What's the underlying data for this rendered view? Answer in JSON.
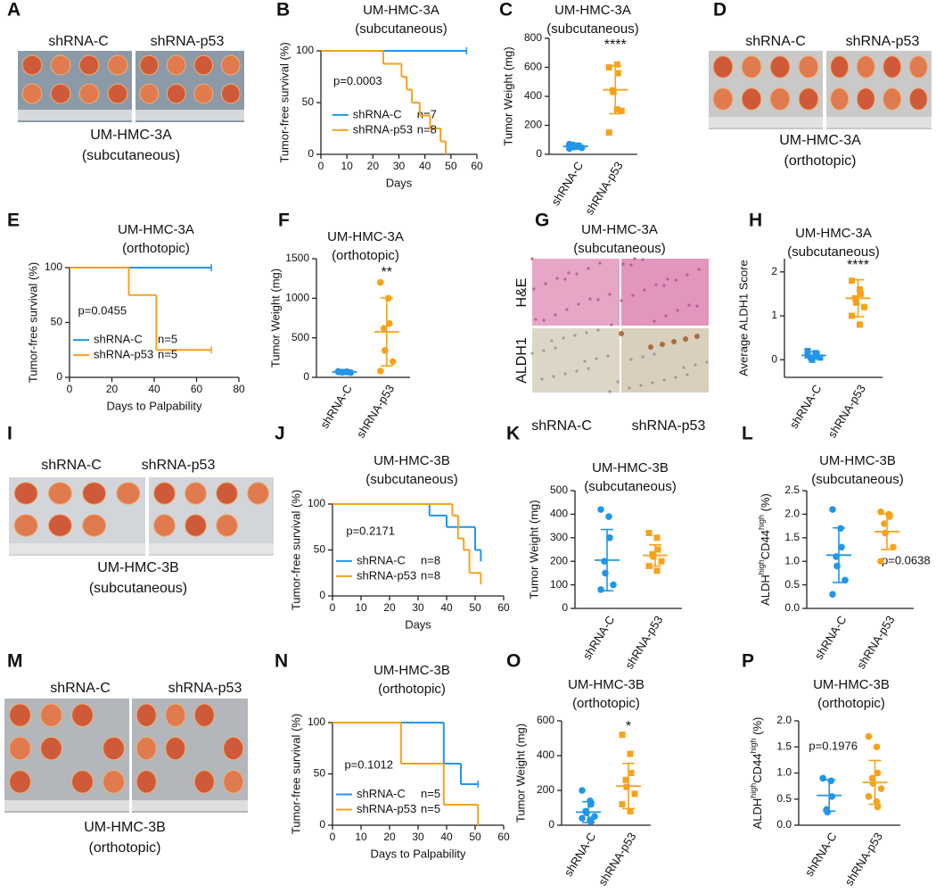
{
  "chart_data": [
    {
      "panel": "B",
      "type": "survival",
      "title": "UM-HMC-3A",
      "subtitle": "(subcutaneous)",
      "xlabel": "Days",
      "ylabel": "Tumor-free survival (%)",
      "xlim": [
        0,
        60
      ],
      "xticks": [
        0,
        10,
        20,
        30,
        40,
        50,
        60
      ],
      "ylim": [
        0,
        100
      ],
      "yticks": [
        0,
        50,
        100
      ],
      "annotation": "p=0.0003",
      "series": [
        {
          "name": "shRNA-C",
          "n_label": "n=7",
          "color": "#2196e8",
          "x": [
            0,
            56
          ],
          "values": [
            100,
            100
          ]
        },
        {
          "name": "shRNA-p53",
          "n_label": "n=8",
          "color": "#f7a21b",
          "x": [
            0,
            24,
            31,
            33,
            35,
            38,
            42,
            46,
            48
          ],
          "values": [
            100,
            87.5,
            75,
            62.5,
            50,
            37.5,
            25,
            12.5,
            0
          ]
        }
      ]
    },
    {
      "panel": "C",
      "type": "dot",
      "title": "UM-HMC-3A",
      "subtitle": "(subcutaneous)",
      "ylabel": "Tumor Weight (mg)",
      "ylim": [
        0,
        800
      ],
      "yticks": [
        0,
        200,
        400,
        600,
        800
      ],
      "annotation": "****",
      "series": [
        {
          "name": "shRNA-C",
          "color": "#2196e8",
          "marker": "circle",
          "values": [
            40,
            55,
            60,
            65,
            50,
            45,
            70
          ],
          "mean": 55,
          "sd": 20
        },
        {
          "name": "shRNA-p53",
          "color": "#f7a21b",
          "marker": "square",
          "values": [
            600,
            620,
            560,
            440,
            430,
            300,
            150,
            310
          ],
          "mean": 445,
          "sd": 165
        }
      ]
    },
    {
      "panel": "E",
      "type": "survival",
      "title": "UM-HMC-3A",
      "subtitle": "(orthotopic)",
      "xlabel": "Days to Palpability",
      "ylabel": "Tumor-free survival (%)",
      "xlim": [
        0,
        80
      ],
      "xticks": [
        0,
        20,
        40,
        60,
        80
      ],
      "ylim": [
        0,
        100
      ],
      "yticks": [
        0,
        50,
        100
      ],
      "annotation": "p=0.0455",
      "series": [
        {
          "name": "shRNA-C",
          "n_label": "n=5",
          "color": "#2196e8",
          "x": [
            0,
            67
          ],
          "values": [
            100,
            100
          ]
        },
        {
          "name": "shRNA-p53",
          "n_label": "n=5",
          "color": "#f7a21b",
          "x": [
            0,
            28,
            41,
            67
          ],
          "values": [
            100,
            75,
            25,
            25
          ]
        }
      ]
    },
    {
      "panel": "F",
      "type": "dot",
      "title": "UM-HMC-3A",
      "subtitle": "(orthotopic)",
      "ylabel": "Tumor Weight (mg)",
      "ylim": [
        0,
        1500
      ],
      "yticks": [
        0,
        500,
        1000,
        1500
      ],
      "annotation": "**",
      "series": [
        {
          "name": "shRNA-C",
          "color": "#2196e8",
          "marker": "circle",
          "values": [
            70,
            70,
            70,
            65,
            65,
            60,
            75
          ],
          "mean": 68,
          "sd": 5
        },
        {
          "name": "shRNA-p53",
          "color": "#f7a21b",
          "marker": "circle",
          "values": [
            1200,
            1000,
            680,
            620,
            340,
            200,
            80
          ],
          "mean": 575,
          "sd": 430
        }
      ]
    },
    {
      "panel": "H",
      "type": "dot",
      "title": "UM-HMC-3A",
      "subtitle": "(subcutaneous)",
      "ylabel": "Average ALDH1 Score",
      "ylim": [
        -0.4,
        2.3
      ],
      "yticks": [
        0,
        1,
        2
      ],
      "annotation": "****",
      "series": [
        {
          "name": "shRNA-C",
          "color": "#2196e8",
          "marker": "square",
          "values": [
            0.2,
            0.15,
            0.1,
            0.05,
            0,
            0.05,
            0.1,
            0.15
          ],
          "mean": 0.1,
          "sd": 0.08
        },
        {
          "name": "shRNA-p53",
          "color": "#f7a21b",
          "marker": "square",
          "values": [
            1.8,
            1.6,
            1.5,
            1.4,
            1.3,
            1.2,
            1.0,
            0.8
          ],
          "mean": 1.4,
          "sd": 0.42
        }
      ]
    },
    {
      "panel": "J",
      "type": "survival",
      "title": "UM-HMC-3B",
      "subtitle": "(subcutaneous)",
      "xlabel": "Days",
      "ylabel": "Tumor-free survival (%)",
      "xlim": [
        0,
        60
      ],
      "xticks": [
        0,
        10,
        20,
        30,
        40,
        50,
        60
      ],
      "ylim": [
        0,
        100
      ],
      "yticks": [
        0,
        50,
        100
      ],
      "annotation": "p=0.2171",
      "series": [
        {
          "name": "shRNA-C",
          "n_label": "n=8",
          "color": "#2196e8",
          "x": [
            0,
            34,
            40,
            50,
            52
          ],
          "values": [
            100,
            87.5,
            75,
            50,
            37.5
          ]
        },
        {
          "name": "shRNA-p53",
          "n_label": "n=8",
          "color": "#f7a21b",
          "x": [
            0,
            42,
            44,
            46,
            48,
            52
          ],
          "values": [
            100,
            87.5,
            62.5,
            50,
            25,
            12.5
          ]
        }
      ]
    },
    {
      "panel": "K",
      "type": "dot",
      "title": "UM-HMC-3B",
      "subtitle": "(subcutaneous)",
      "ylabel": "Tumor Weight (mg)",
      "ylim": [
        0,
        500
      ],
      "yticks": [
        0,
        100,
        200,
        300,
        400,
        500
      ],
      "series": [
        {
          "name": "shRNA-C",
          "color": "#2196e8",
          "marker": "circle",
          "values": [
            420,
            390,
            300,
            200,
            150,
            100,
            80
          ],
          "mean": 205,
          "sd": 130
        },
        {
          "name": "shRNA-p53",
          "color": "#f7a21b",
          "marker": "square",
          "values": [
            320,
            300,
            250,
            230,
            220,
            200,
            180,
            160
          ],
          "mean": 225,
          "sd": 45
        }
      ]
    },
    {
      "panel": "L",
      "type": "dot",
      "title": "UM-HMC-3B",
      "subtitle": "(subcutaneous)",
      "ylabel": [
        {
          "text": "ALDH"
        },
        {
          "text": "high",
          "sup": true
        },
        {
          "text": "CD44"
        },
        {
          "text": "high",
          "sup": true
        },
        {
          "text": " (%)"
        }
      ],
      "ylim": [
        0,
        2.5
      ],
      "yticks": [
        {
          "value": 0,
          "label": "0.0"
        },
        0.5,
        {
          "value": 1,
          "label": "1.0"
        },
        1.5,
        {
          "value": 2,
          "label": "2.0"
        },
        2.5
      ],
      "annotation": "p=0.0638",
      "series": [
        {
          "name": "shRNA-C",
          "color": "#2196e8",
          "marker": "circle",
          "values": [
            2.1,
            1.7,
            1.3,
            1.1,
            0.9,
            0.6,
            0.3
          ],
          "mean": 1.13,
          "sd": 0.58
        },
        {
          "name": "shRNA-p53",
          "color": "#f7a21b",
          "marker": "circle",
          "values": [
            2.05,
            2.0,
            1.95,
            1.8,
            1.6,
            1.3,
            1.0
          ],
          "mean": 1.63,
          "sd": 0.38
        }
      ]
    },
    {
      "panel": "N",
      "type": "survival",
      "title": "UM-HMC-3B",
      "subtitle": "(orthotopic)",
      "xlabel": "Days to Palpability",
      "ylabel": "Tumor-free survival (%)",
      "xlim": [
        0,
        60
      ],
      "xticks": [
        0,
        10,
        20,
        30,
        40,
        50,
        60
      ],
      "ylim": [
        0,
        100
      ],
      "yticks": [
        0,
        50,
        100
      ],
      "annotation": "p=0.1012",
      "series": [
        {
          "name": "shRNA-C",
          "n_label": "n=5",
          "color": "#2196e8",
          "x": [
            0,
            39,
            45,
            51
          ],
          "values": [
            100,
            60,
            40,
            40
          ]
        },
        {
          "name": "shRNA-p53",
          "n_label": "n=5",
          "color": "#f7a21b",
          "x": [
            0,
            24,
            39,
            51
          ],
          "values": [
            100,
            60,
            20,
            0
          ]
        }
      ]
    },
    {
      "panel": "O",
      "type": "dot",
      "title": "UM-HMC-3B",
      "subtitle": "(orthotopic)",
      "ylabel": "Tumor Weight (mg)",
      "ylim": [
        0,
        600
      ],
      "yticks": [
        0,
        200,
        400,
        600
      ],
      "annotation": "*",
      "series": [
        {
          "name": "shRNA-C",
          "color": "#2196e8",
          "marker": "circle",
          "values": [
            200,
            140,
            120,
            80,
            70,
            50,
            40,
            30,
            20
          ],
          "mean": 75,
          "sd": 60
        },
        {
          "name": "shRNA-p53",
          "color": "#f7a21b",
          "marker": "square",
          "values": [
            520,
            410,
            300,
            260,
            220,
            180,
            120,
            80
          ],
          "mean": 225,
          "sd": 130
        }
      ]
    },
    {
      "panel": "P",
      "type": "dot",
      "title": "UM-HMC-3B",
      "subtitle": "(orthotopic)",
      "ylabel": [
        {
          "text": "ALDH"
        },
        {
          "text": "high",
          "sup": true
        },
        {
          "text": "CD44"
        },
        {
          "text": "high",
          "sup": true
        },
        {
          "text": " (%)"
        }
      ],
      "ylim": [
        0,
        2.0
      ],
      "yticks": [
        {
          "value": 0,
          "label": "0.0"
        },
        0.5,
        {
          "value": 1,
          "label": "1.0"
        },
        1.5,
        {
          "value": 2,
          "label": "2.0"
        }
      ],
      "annotation": "p=0.1976",
      "series": [
        {
          "name": "shRNA-C",
          "color": "#2196e8",
          "marker": "circle",
          "values": [
            0.9,
            0.85,
            0.55,
            0.3,
            0.25
          ],
          "mean": 0.57,
          "sd": 0.3
        },
        {
          "name": "shRNA-p53",
          "color": "#f7a21b",
          "marker": "circle",
          "values": [
            1.7,
            1.5,
            1.0,
            0.9,
            0.8,
            0.7,
            0.55,
            0.45,
            0.35
          ],
          "mean": 0.82,
          "sd": 0.42
        }
      ]
    }
  ],
  "photo_panels": [
    {
      "panel": "A",
      "labels": [
        "shRNA-C",
        "shRNA-p53"
      ],
      "caption": [
        "UM-HMC-3A",
        "(subcutaneous)"
      ]
    },
    {
      "panel": "D",
      "labels": [
        "shRNA-C",
        "shRNA-p53"
      ],
      "caption": [
        "UM-HMC-3A",
        "(orthotopic)"
      ]
    },
    {
      "panel": "I",
      "labels": [
        "shRNA-C",
        "shRNA-p53"
      ],
      "caption": [
        "UM-HMC-3B",
        "(subcutaneous)"
      ]
    },
    {
      "panel": "M",
      "labels": [
        "shRNA-C",
        "shRNA-p53"
      ],
      "caption": [
        "UM-HMC-3B",
        "(orthotopic)"
      ]
    }
  ],
  "histology": {
    "panel": "G",
    "title": "UM-HMC-3A",
    "subtitle": "(subcutaneous)",
    "row_labels": [
      "H&E",
      "ALDH1"
    ],
    "labels": [
      "shRNA-C",
      "shRNA-p53"
    ]
  }
}
